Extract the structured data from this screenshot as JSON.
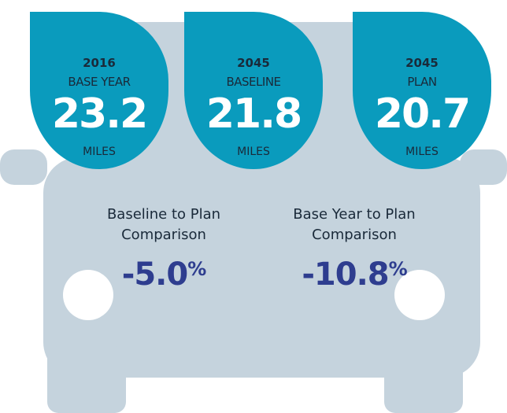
{
  "drops": [
    {
      "year": "2016",
      "label": "BASE YEAR",
      "value": "23.2",
      "unit": "MILES"
    },
    {
      "year": "2045",
      "label": "BASELINE",
      "value": "21.8",
      "unit": "MILES"
    },
    {
      "year": "2045",
      "label": "PLAN",
      "value": "20.7",
      "unit": "MILES"
    }
  ],
  "comparisons": [
    {
      "label": [
        "Baseline to Plan",
        "Comparison"
      ],
      "value": "-5.0",
      "unit": "%"
    },
    {
      "label": [
        "Base Year to Plan",
        "Comparison"
      ],
      "value": "-10.8",
      "unit": "%"
    }
  ]
}
